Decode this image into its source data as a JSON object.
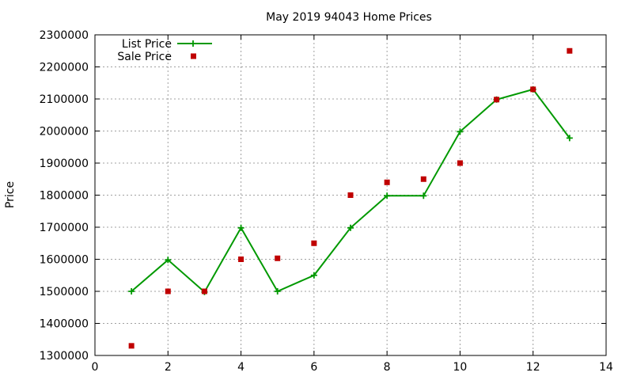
{
  "chart_data": {
    "type": "line",
    "title": "May 2019 94043 Home Prices",
    "xlabel": "",
    "ylabel": "Price",
    "xlim": [
      0,
      14
    ],
    "ylim": [
      1300000,
      2300000
    ],
    "x_ticks": [
      0,
      2,
      4,
      6,
      8,
      10,
      12,
      14
    ],
    "y_ticks": [
      1300000,
      1400000,
      1500000,
      1600000,
      1700000,
      1800000,
      1900000,
      2000000,
      2100000,
      2200000,
      2300000
    ],
    "grid": true,
    "legend_position": "top-left",
    "series": [
      {
        "name": "List Price",
        "style": "line-with-plus-markers",
        "color": "#009900",
        "x": [
          1,
          2,
          3,
          4,
          5,
          6,
          7,
          8,
          9,
          10,
          11,
          12,
          13
        ],
        "y": [
          1500000,
          1598000,
          1498000,
          1698000,
          1500000,
          1550000,
          1698000,
          1798000,
          1798000,
          1998000,
          2098000,
          2130000,
          1978000
        ]
      },
      {
        "name": "Sale Price",
        "style": "square-markers",
        "color": "#c00000",
        "x": [
          1,
          2,
          3,
          4,
          5,
          6,
          7,
          8,
          9,
          10,
          11,
          12,
          13
        ],
        "y": [
          1330000,
          1500000,
          1500000,
          1600000,
          1603000,
          1650000,
          1800000,
          1840000,
          1850000,
          1900000,
          2098000,
          2130000,
          2250000
        ]
      }
    ]
  }
}
